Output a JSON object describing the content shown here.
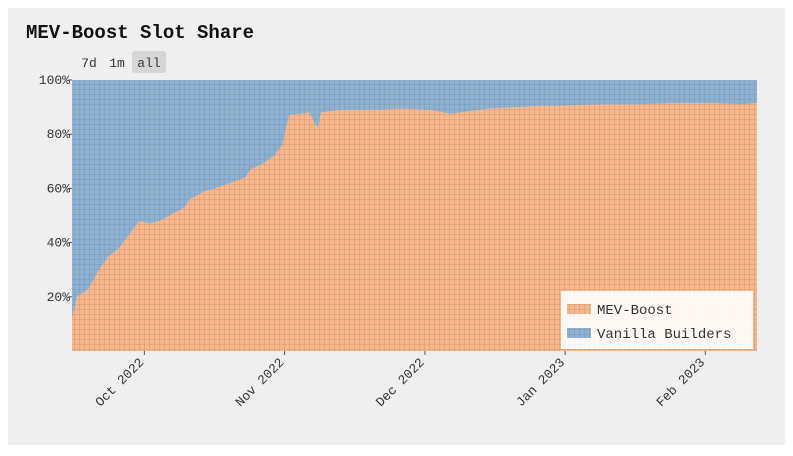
{
  "chart_data": {
    "type": "stacked_area",
    "title": "MEV-Boost Slot Share",
    "range_buttons": [
      "7d",
      "1m",
      "all"
    ],
    "selected_range": "all",
    "x": [
      2022.707,
      2022.71,
      2022.717,
      2022.723,
      2022.729,
      2022.735,
      2022.741,
      2022.747,
      2022.753,
      2022.759,
      2022.765,
      2022.774,
      2022.777,
      2022.786,
      2022.792,
      2022.801,
      2022.81,
      2022.813,
      2022.82,
      2022.827,
      2022.832,
      2022.836,
      2022.848,
      2022.853,
      2022.855,
      2022.866,
      2022.878,
      2022.89,
      2022.902,
      2022.92,
      2022.932,
      2022.943,
      2022.955,
      2022.973,
      2022.985,
      2022.997,
      2023.021,
      2023.045,
      2023.068,
      2023.086,
      2023.104,
      2023.114
    ],
    "series": [
      {
        "name": "MEV-Boost",
        "color": "#f9b78b",
        "values": [
          12,
          20,
          23,
          30,
          35,
          38,
          43,
          48,
          47,
          48,
          50,
          53,
          56,
          59,
          60,
          62,
          64,
          67,
          69,
          72,
          76,
          87,
          88,
          82,
          88,
          89,
          89,
          89,
          89.5,
          89,
          87.5,
          88.5,
          89.5,
          90,
          90.5,
          90.5,
          91,
          91,
          91.5,
          91.5,
          91,
          91.5
        ]
      },
      {
        "name": "Vanilla Builders",
        "color": "#8db3d4",
        "values": [
          88,
          80,
          77,
          70,
          65,
          62,
          57,
          52,
          53,
          52,
          50,
          47,
          44,
          41,
          40,
          38,
          36,
          33,
          31,
          28,
          24,
          13,
          12,
          18,
          12,
          11,
          11,
          11,
          10.5,
          11,
          12.5,
          11.5,
          10.5,
          10,
          9.5,
          9.5,
          9,
          9,
          8.5,
          8.5,
          9,
          8.5
        ]
      }
    ],
    "xlim": [
      2022.707,
      2023.114
    ],
    "xticks": [
      {
        "value": 2022.75,
        "label": "Oct 2022"
      },
      {
        "value": 2022.8333,
        "label": "Nov 2022"
      },
      {
        "value": 2022.9167,
        "label": "Dec 2022"
      },
      {
        "value": 2023.0,
        "label": "Jan 2023"
      },
      {
        "value": 2023.0833,
        "label": "Feb 2023"
      }
    ],
    "ylim": [
      0,
      100
    ],
    "yticks": [
      {
        "value": 20,
        "label": "20%"
      },
      {
        "value": 40,
        "label": "40%"
      },
      {
        "value": 60,
        "label": "60%"
      },
      {
        "value": 80,
        "label": "80%"
      },
      {
        "value": 100,
        "label": "100%"
      }
    ],
    "legend": "lower right"
  }
}
